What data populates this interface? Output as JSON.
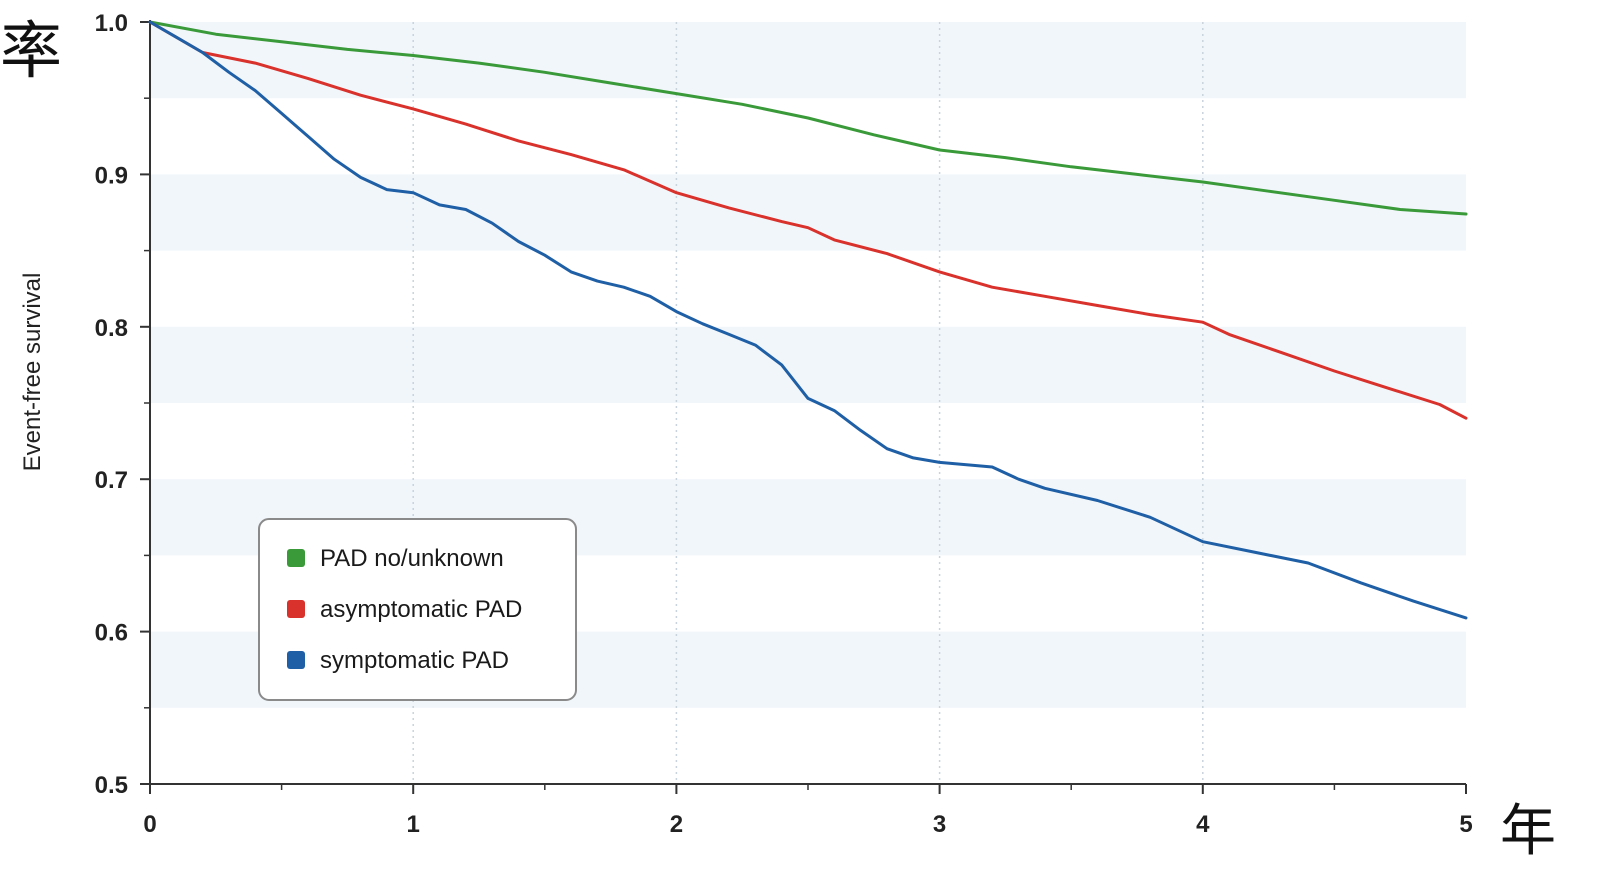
{
  "page": {
    "corner_top_left": "率",
    "corner_bottom_right": "年"
  },
  "chart_data": {
    "type": "line",
    "ylabel": "Event-free survival",
    "xlabel": "",
    "xlim": [
      0,
      5
    ],
    "ylim": [
      0.5,
      1.0
    ],
    "x_ticks": [
      "0",
      "1",
      "2",
      "3",
      "4",
      "5"
    ],
    "y_ticks": [
      "0.5",
      "0.6",
      "0.7",
      "0.8",
      "0.9",
      "1.0"
    ],
    "grid": "vertical dotted at integer x; light alternating horizontal bands",
    "legend_position": "lower-left",
    "series": [
      {
        "name": "PAD no/unknown",
        "color": "#3a9a3a",
        "points": [
          [
            0,
            1.0
          ],
          [
            0.25,
            0.992
          ],
          [
            0.5,
            0.987
          ],
          [
            0.75,
            0.982
          ],
          [
            1.0,
            0.978
          ],
          [
            1.25,
            0.973
          ],
          [
            1.5,
            0.967
          ],
          [
            1.75,
            0.96
          ],
          [
            2.0,
            0.953
          ],
          [
            2.25,
            0.946
          ],
          [
            2.5,
            0.937
          ],
          [
            2.75,
            0.926
          ],
          [
            3.0,
            0.916
          ],
          [
            3.25,
            0.911
          ],
          [
            3.5,
            0.905
          ],
          [
            3.75,
            0.9
          ],
          [
            4.0,
            0.895
          ],
          [
            4.25,
            0.889
          ],
          [
            4.5,
            0.883
          ],
          [
            4.75,
            0.877
          ],
          [
            5.0,
            0.874
          ]
        ]
      },
      {
        "name": "asymptomatic PAD",
        "color": "#d9312b",
        "points": [
          [
            0,
            1.0
          ],
          [
            0.2,
            0.98
          ],
          [
            0.4,
            0.973
          ],
          [
            0.6,
            0.963
          ],
          [
            0.8,
            0.952
          ],
          [
            1.0,
            0.943
          ],
          [
            1.2,
            0.933
          ],
          [
            1.4,
            0.922
          ],
          [
            1.6,
            0.913
          ],
          [
            1.8,
            0.903
          ],
          [
            2.0,
            0.888
          ],
          [
            2.2,
            0.878
          ],
          [
            2.4,
            0.869
          ],
          [
            2.5,
            0.865
          ],
          [
            2.6,
            0.857
          ],
          [
            2.8,
            0.848
          ],
          [
            3.0,
            0.836
          ],
          [
            3.2,
            0.826
          ],
          [
            3.4,
            0.82
          ],
          [
            3.6,
            0.814
          ],
          [
            3.8,
            0.808
          ],
          [
            4.0,
            0.803
          ],
          [
            4.1,
            0.795
          ],
          [
            4.3,
            0.783
          ],
          [
            4.5,
            0.771
          ],
          [
            4.7,
            0.76
          ],
          [
            4.9,
            0.749
          ],
          [
            5.0,
            0.74
          ]
        ]
      },
      {
        "name": "symptomatic PAD",
        "color": "#1f5fa5",
        "points": [
          [
            0,
            1.0
          ],
          [
            0.1,
            0.99
          ],
          [
            0.2,
            0.98
          ],
          [
            0.3,
            0.967
          ],
          [
            0.4,
            0.955
          ],
          [
            0.5,
            0.94
          ],
          [
            0.6,
            0.925
          ],
          [
            0.7,
            0.91
          ],
          [
            0.8,
            0.898
          ],
          [
            0.9,
            0.89
          ],
          [
            1.0,
            0.888
          ],
          [
            1.1,
            0.88
          ],
          [
            1.2,
            0.877
          ],
          [
            1.3,
            0.868
          ],
          [
            1.4,
            0.856
          ],
          [
            1.5,
            0.847
          ],
          [
            1.6,
            0.836
          ],
          [
            1.7,
            0.83
          ],
          [
            1.8,
            0.826
          ],
          [
            1.9,
            0.82
          ],
          [
            2.0,
            0.81
          ],
          [
            2.1,
            0.802
          ],
          [
            2.2,
            0.795
          ],
          [
            2.3,
            0.788
          ],
          [
            2.4,
            0.775
          ],
          [
            2.5,
            0.753
          ],
          [
            2.6,
            0.745
          ],
          [
            2.7,
            0.732
          ],
          [
            2.8,
            0.72
          ],
          [
            2.9,
            0.714
          ],
          [
            3.0,
            0.711
          ],
          [
            3.2,
            0.708
          ],
          [
            3.3,
            0.7
          ],
          [
            3.4,
            0.694
          ],
          [
            3.6,
            0.686
          ],
          [
            3.8,
            0.675
          ],
          [
            4.0,
            0.659
          ],
          [
            4.2,
            0.652
          ],
          [
            4.4,
            0.645
          ],
          [
            4.6,
            0.632
          ],
          [
            4.8,
            0.62
          ],
          [
            5.0,
            0.609
          ]
        ]
      }
    ]
  }
}
